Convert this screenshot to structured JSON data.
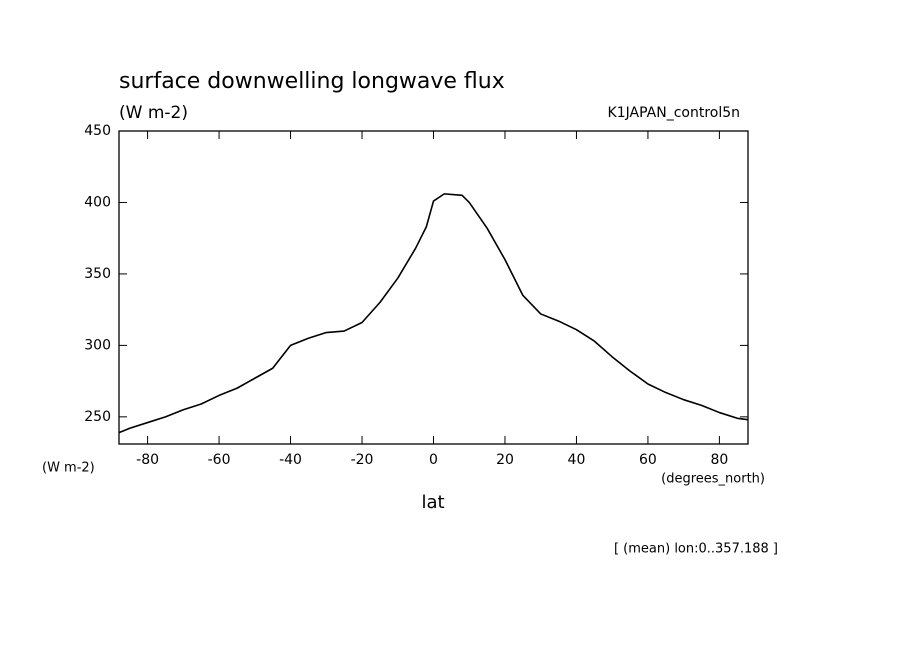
{
  "chart_data": {
    "type": "line",
    "title": "surface downwelling longwave flux",
    "subtitle": "(W m-2)",
    "experiment": "K1JAPAN_control5n",
    "ylabel": "(W m-2)",
    "xunits": "(degrees_north)",
    "xlabel": "lat",
    "footnote": "[ (mean) lon:0..357.188 ]",
    "x": [
      -88,
      -85,
      -80,
      -75,
      -70,
      -65,
      -60,
      -55,
      -50,
      -45,
      -40,
      -35,
      -30,
      -25,
      -20,
      -15,
      -10,
      -5,
      -2,
      0,
      3,
      8,
      10,
      15,
      20,
      25,
      30,
      35,
      40,
      45,
      50,
      55,
      60,
      65,
      70,
      75,
      80,
      85,
      88
    ],
    "series": [
      {
        "name": "surface downwelling longwave flux",
        "color": "#000000",
        "values": [
          239,
          242,
          246,
          250,
          255,
          259,
          265,
          270,
          277,
          284,
          300,
          305,
          309,
          310,
          316,
          330,
          347,
          368,
          383,
          401,
          406,
          405,
          400,
          382,
          360,
          335,
          322,
          317,
          311,
          303,
          292,
          282,
          273,
          267,
          262,
          258,
          253,
          249,
          248
        ]
      }
    ],
    "xlim": [
      -88,
      88
    ],
    "ylim": [
      231,
      450
    ],
    "xticks": [
      -80,
      -60,
      -40,
      -20,
      0,
      20,
      40,
      60,
      80
    ],
    "yticks": [
      250,
      300,
      350,
      400,
      450
    ],
    "grid": false
  }
}
